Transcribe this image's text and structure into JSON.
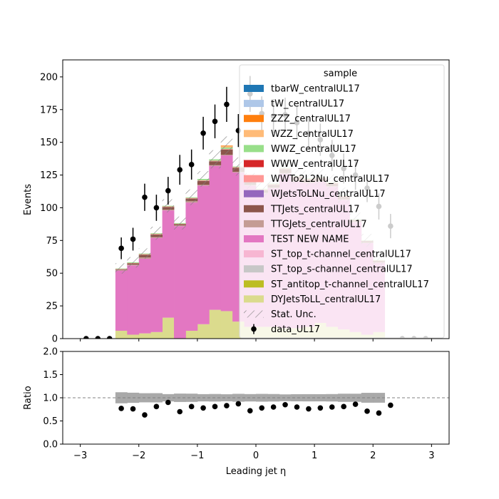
{
  "chart_data": {
    "type": "bar",
    "stacked": true,
    "x_bin_edges": [
      -2.4,
      -2.2,
      -2.0,
      -1.8,
      -1.6,
      -1.4,
      -1.2,
      -1.0,
      -0.8,
      -0.6,
      -0.4,
      -0.2,
      0.0,
      0.2,
      0.4,
      0.6,
      0.8,
      1.0,
      1.2,
      1.4,
      1.6,
      1.8,
      2.0,
      2.2,
      2.4
    ],
    "xlim": [
      -3.3,
      3.3
    ],
    "xticks": [
      "−3",
      "−2",
      "−1",
      "0",
      "1",
      "2",
      "3"
    ],
    "xtick_values": [
      -3,
      -2,
      -1,
      0,
      1,
      2,
      3
    ],
    "xlabel": "Leading jet  η",
    "top_panel": {
      "ylabel": "Events",
      "ylim": [
        0,
        213
      ],
      "yticks": [
        0,
        25,
        50,
        75,
        100,
        125,
        150,
        175,
        200
      ]
    },
    "bottom_panel": {
      "ylabel": "Ratio",
      "ylim": [
        0,
        2
      ],
      "yticks": [
        "0.0",
        "0.5",
        "1.0",
        "1.5",
        "2.0"
      ],
      "ytick_values": [
        0,
        0.5,
        1.0,
        1.5,
        2.0
      ],
      "reference_line": 1.0
    },
    "legend": {
      "title": "sample",
      "position": "upper right",
      "entries": [
        {
          "label": "tbarW_centralUL17",
          "color": "#1f77b4",
          "kind": "patch"
        },
        {
          "label": "tW_centralUL17",
          "color": "#aec7e8",
          "kind": "patch"
        },
        {
          "label": "ZZZ_centralUL17",
          "color": "#ff7f0e",
          "kind": "patch"
        },
        {
          "label": "WZZ_centralUL17",
          "color": "#ffbb78",
          "kind": "patch"
        },
        {
          "label": "WWZ_centralUL17",
          "color": "#98df8a",
          "kind": "patch"
        },
        {
          "label": "WWW_centralUL17",
          "color": "#d62728",
          "kind": "patch"
        },
        {
          "label": "WWTo2L2Nu_centralUL17",
          "color": "#ff9896",
          "kind": "patch"
        },
        {
          "label": "WJetsToLNu_centralUL17",
          "color": "#9467bd",
          "kind": "patch"
        },
        {
          "label": "TTJets_centralUL17",
          "color": "#8c564b",
          "kind": "patch"
        },
        {
          "label": "TTGJets_centralUL17",
          "color": "#c49c94",
          "kind": "patch"
        },
        {
          "label": "TEST NEW NAME",
          "color": "#e377c2",
          "kind": "patch"
        },
        {
          "label": "ST_top_t-channel_centralUL17",
          "color": "#f7b6d2",
          "kind": "patch"
        },
        {
          "label": "ST_top_s-channel_centralUL17",
          "color": "#c7c7c7",
          "kind": "patch"
        },
        {
          "label": "ST_antitop_t-channel_centralUL17",
          "color": "#bcbd22",
          "kind": "patch"
        },
        {
          "label": "DYJetsToLL_centralUL17",
          "color": "#dbdb8d",
          "kind": "patch"
        },
        {
          "label": "Stat. Unc.",
          "color": "#808080",
          "kind": "hatch"
        },
        {
          "label": "data_UL17",
          "color": "#000000",
          "kind": "errorbar"
        }
      ]
    },
    "series": [
      {
        "name": "DYJetsToLL_centralUL17",
        "color": "#dbdb8d",
        "values": [
          6,
          3,
          4,
          5,
          16,
          0,
          6,
          11,
          22,
          21,
          13,
          9,
          9,
          9,
          8,
          8,
          9,
          12,
          9,
          7,
          5,
          3,
          5,
          0
        ]
      },
      {
        "name": "TEST NEW NAME",
        "color": "#e377c2",
        "values": [
          46,
          53,
          57,
          72,
          82,
          86,
          98,
          106,
          110,
          119,
          114,
          108,
          102,
          106,
          118,
          112,
          110,
          108,
          107,
          99,
          84,
          70,
          53,
          0
        ]
      },
      {
        "name": "TTGJets_centralUL17",
        "color": "#c49c94",
        "values": [
          0.5,
          0.5,
          1,
          0.5,
          0.5,
          0.5,
          1,
          0.5,
          0.5,
          0.5,
          0.5,
          0.5,
          0.5,
          0.5,
          0.5,
          0.5,
          0.5,
          0.5,
          0.5,
          0.5,
          0.5,
          0.5,
          0.5,
          0
        ]
      },
      {
        "name": "TTJets_centralUL17",
        "color": "#8c564b",
        "values": [
          0.5,
          1,
          2,
          2,
          2,
          1,
          2,
          3,
          3,
          4,
          3,
          2,
          2,
          2,
          3,
          3,
          2,
          2,
          2,
          2,
          1,
          1,
          1,
          0
        ]
      },
      {
        "name": "WWTo2L2Nu_centralUL17",
        "color": "#ff9896",
        "values": [
          0.3,
          0.3,
          0.5,
          0.5,
          0.5,
          0.3,
          0.5,
          0.5,
          0.5,
          0.5,
          0.5,
          0.5,
          0.5,
          0.5,
          0.5,
          0.5,
          0.5,
          0.5,
          0.5,
          0.5,
          0.3,
          0.3,
          0.3,
          0
        ]
      },
      {
        "name": "WWZ_centralUL17",
        "color": "#98df8a",
        "values": [
          0.3,
          0.5,
          0.5,
          0.5,
          0.5,
          0.5,
          0.5,
          1,
          1,
          1,
          0.5,
          0.5,
          0.5,
          0.5,
          0.5,
          0.5,
          0.5,
          0.5,
          0.5,
          0.5,
          0.5,
          0.3,
          0.3,
          0
        ]
      },
      {
        "name": "WZZ_centralUL17",
        "color": "#ffbb78",
        "values": [
          0,
          0,
          0,
          0,
          0,
          0,
          0,
          0,
          0,
          1,
          0,
          0,
          0,
          0,
          0,
          0,
          0,
          0,
          0,
          0,
          0,
          0,
          0,
          0
        ]
      },
      {
        "name": "ZZZ_centralUL17",
        "color": "#ff7f0e",
        "values": [
          0,
          0,
          0,
          0,
          0,
          0,
          0,
          0,
          0,
          0.5,
          0,
          0,
          0,
          0,
          0,
          0,
          0,
          0,
          0,
          0,
          0,
          0,
          0,
          0
        ]
      }
    ],
    "stat_unc": [
      4,
      4,
      4,
      5,
      5,
      5,
      6,
      6,
      7,
      7,
      7,
      6,
      6,
      6,
      6,
      6,
      6,
      6,
      6,
      6,
      5,
      5,
      4,
      0
    ],
    "data": {
      "name": "data_UL17",
      "x": [
        -2.9,
        -2.7,
        -2.5,
        -2.3,
        -2.1,
        -1.9,
        -1.7,
        -1.5,
        -1.3,
        -1.1,
        -0.9,
        -0.7,
        -0.5,
        -0.3,
        -0.1,
        0.1,
        0.3,
        0.5,
        0.7,
        0.9,
        1.1,
        1.3,
        1.5,
        1.7,
        1.9,
        2.1,
        2.3,
        2.5,
        2.7,
        2.9
      ],
      "y": [
        0,
        0,
        0,
        69,
        76,
        108,
        100,
        113,
        129,
        133,
        157,
        166,
        179,
        159,
        187,
        172,
        170,
        171,
        165,
        157,
        152,
        140,
        130,
        125,
        115,
        101,
        86,
        0,
        0,
        0
      ],
      "yerr": [
        0,
        0,
        0,
        8.3,
        8.7,
        10.4,
        10,
        10.6,
        11.4,
        11.5,
        12.5,
        12.9,
        13.4,
        12.6,
        13.7,
        13.1,
        13,
        13.1,
        12.8,
        12.5,
        12.3,
        11.8,
        11.4,
        11.2,
        10.7,
        10,
        9.3,
        0,
        0,
        0
      ],
      "ratio": [
        null,
        null,
        null,
        0.77,
        0.76,
        0.63,
        0.81,
        0.9,
        0.7,
        0.81,
        0.78,
        0.81,
        0.83,
        0.87,
        0.72,
        0.78,
        0.8,
        0.85,
        0.8,
        0.76,
        0.78,
        0.8,
        0.81,
        0.86,
        0.71,
        0.67,
        0.84,
        null,
        null,
        null
      ]
    }
  }
}
